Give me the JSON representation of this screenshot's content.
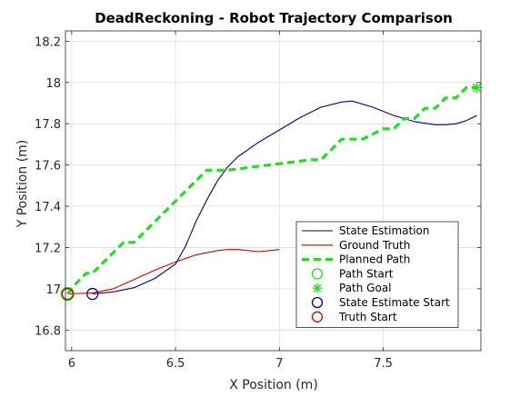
{
  "chart_data": {
    "type": "line",
    "title": "DeadReckoning - Robot Trajectory Comparison",
    "xlabel": "X Position (m)",
    "ylabel": "Y Position (m)",
    "xlim": [
      5.97,
      7.97
    ],
    "ylim": [
      16.7,
      18.25
    ],
    "xticks": [
      "6",
      "6.5",
      "7",
      "7.5"
    ],
    "xtick_values": [
      6,
      6.5,
      7,
      7.5
    ],
    "yticks": [
      "16.8",
      "17",
      "17.2",
      "17.4",
      "17.6",
      "17.8",
      "18",
      "18.2"
    ],
    "ytick_values": [
      16.8,
      17.0,
      17.2,
      17.4,
      17.6,
      17.8,
      18.0,
      18.2
    ],
    "grid": true,
    "legend_position": "bottom-right",
    "series": [
      {
        "name": "State Estimation",
        "color": "#00008B",
        "style": "solid",
        "x": [
          6.1,
          6.2,
          6.3,
          6.4,
          6.5,
          6.55,
          6.6,
          6.65,
          6.7,
          6.75,
          6.8,
          6.9,
          7.0,
          7.1,
          7.2,
          7.3,
          7.35,
          7.45,
          7.55,
          7.65,
          7.75,
          7.8,
          7.85,
          7.9,
          7.95
        ],
        "y": [
          16.975,
          16.985,
          17.005,
          17.05,
          17.12,
          17.21,
          17.33,
          17.43,
          17.52,
          17.59,
          17.64,
          17.71,
          17.77,
          17.83,
          17.88,
          17.905,
          17.91,
          17.88,
          17.84,
          17.81,
          17.795,
          17.795,
          17.8,
          17.815,
          17.84
        ]
      },
      {
        "name": "Ground Truth",
        "color": "#CC0000",
        "style": "solid",
        "x": [
          5.98,
          6.1,
          6.2,
          6.3,
          6.4,
          6.5,
          6.6,
          6.7,
          6.75,
          6.8,
          6.9,
          7.0
        ],
        "y": [
          16.975,
          16.98,
          17.0,
          17.045,
          17.09,
          17.13,
          17.165,
          17.185,
          17.19,
          17.19,
          17.18,
          17.19
        ]
      },
      {
        "name": "Planned Path",
        "color": "#22DD22",
        "style": "dashed",
        "x": [
          5.98,
          6.02,
          6.07,
          6.1,
          6.15,
          6.2,
          6.25,
          6.3,
          6.35,
          6.4,
          6.45,
          6.5,
          6.55,
          6.6,
          6.65,
          6.7,
          6.75,
          7.15,
          7.2,
          7.25,
          7.3,
          7.35,
          7.4,
          7.5,
          7.55,
          7.6,
          7.65,
          7.7,
          7.75,
          7.8,
          7.85,
          7.9,
          7.95
        ],
        "y": [
          16.975,
          17.025,
          17.075,
          17.075,
          17.125,
          17.175,
          17.225,
          17.225,
          17.275,
          17.325,
          17.375,
          17.425,
          17.475,
          17.525,
          17.575,
          17.575,
          17.575,
          17.625,
          17.625,
          17.675,
          17.725,
          17.725,
          17.725,
          17.775,
          17.775,
          17.825,
          17.825,
          17.875,
          17.875,
          17.925,
          17.925,
          17.975,
          17.975
        ]
      }
    ],
    "markers": [
      {
        "name": "Path Start",
        "x": 5.98,
        "y": 16.975,
        "shape": "circle",
        "color": "#22DD22"
      },
      {
        "name": "Path Goal",
        "x": 7.95,
        "y": 17.975,
        "shape": "asterisk",
        "color": "#22DD22"
      },
      {
        "name": "State Estimate Start",
        "x": 6.1,
        "y": 16.975,
        "shape": "circle",
        "color": "#00008B"
      },
      {
        "name": "Truth Start",
        "x": 5.98,
        "y": 16.975,
        "shape": "circle",
        "color": "#CC0000"
      }
    ],
    "legend": [
      "State Estimation",
      "Ground Truth",
      "Planned Path",
      "Path Start",
      "Path Goal",
      "State Estimate Start",
      "Truth Start"
    ]
  }
}
